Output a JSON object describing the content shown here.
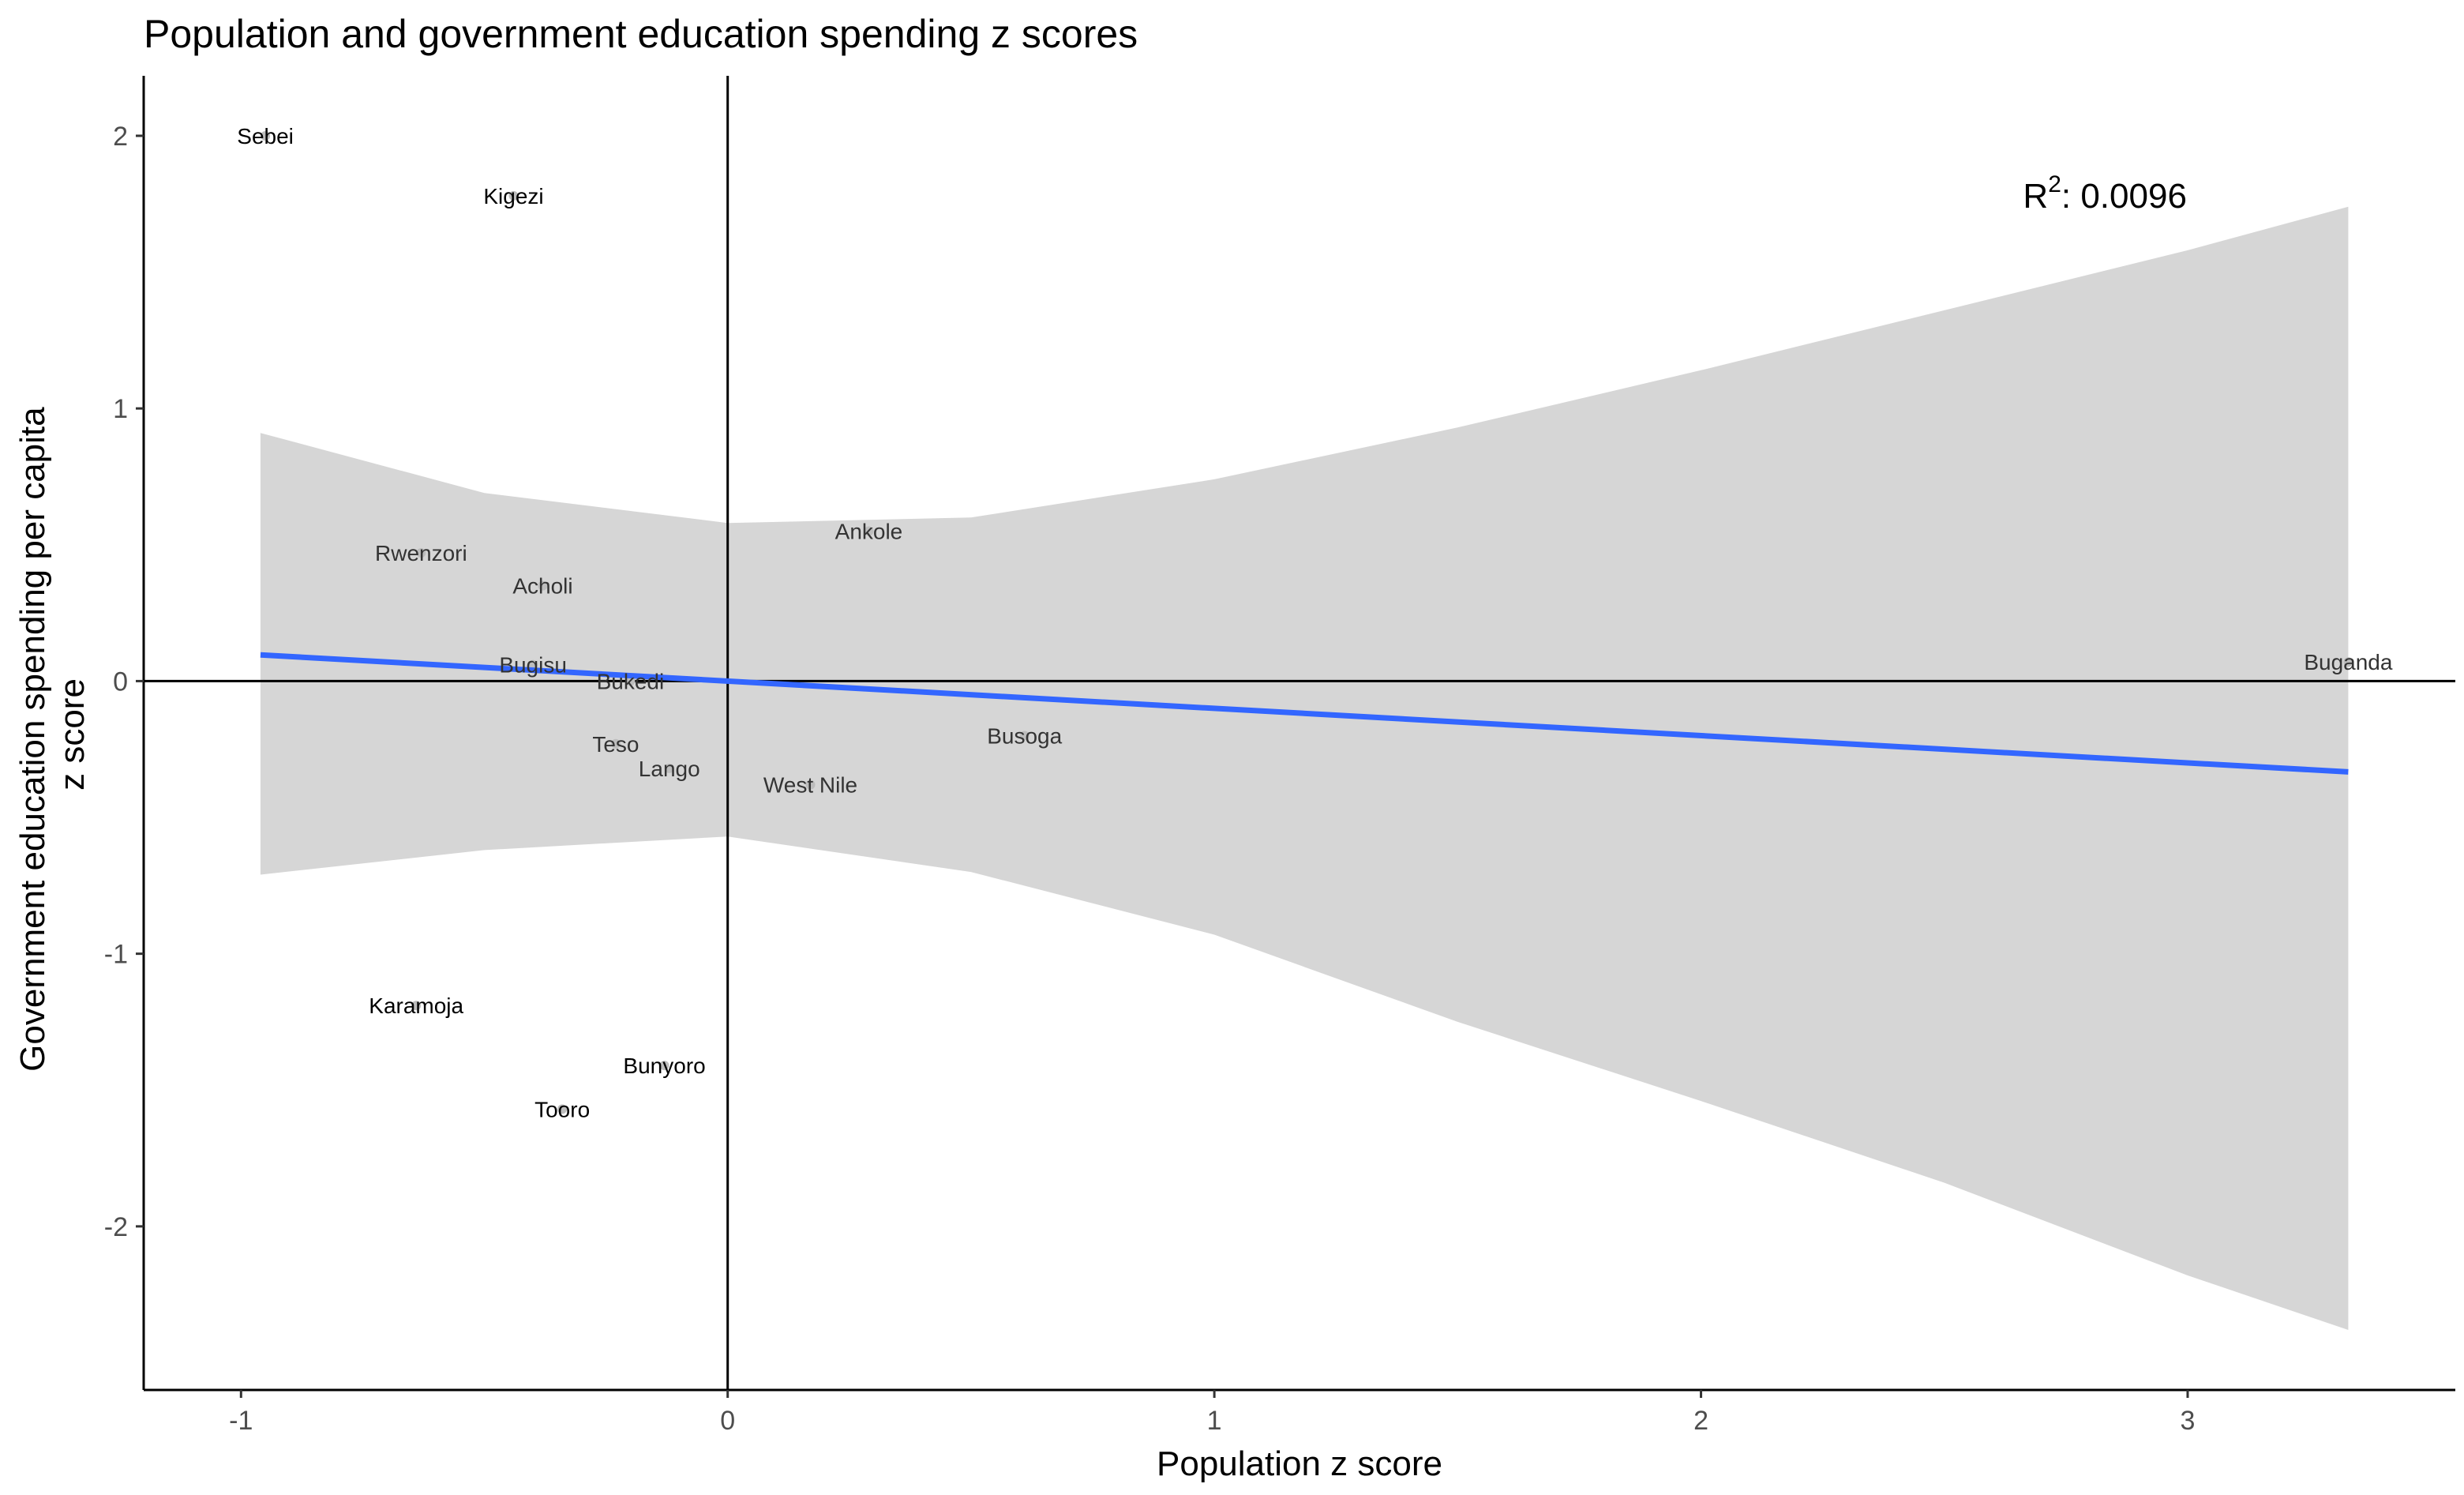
{
  "chart_data": {
    "type": "scatter",
    "title": "Population and government education spending z scores",
    "xlabel": "Population z score",
    "ylabel_lines": [
      "Government education spending per capita",
      "z score"
    ],
    "xlim": [
      -1.2,
      3.55
    ],
    "ylim": [
      -2.6,
      2.22
    ],
    "xticks": [
      -1,
      0,
      1,
      2,
      3
    ],
    "xtick_labels": [
      "-1",
      "0",
      "1",
      "2",
      "3"
    ],
    "yticks": [
      -2,
      -1,
      0,
      1,
      2
    ],
    "ytick_labels": [
      "-2",
      "-1",
      "0",
      "1",
      "2"
    ],
    "grid": false,
    "points": [
      {
        "label": "Sebei",
        "x": -0.95,
        "y": 2.0,
        "label_color": "#000000"
      },
      {
        "label": "Kigezi",
        "x": -0.44,
        "y": 1.78,
        "label_color": "#000000"
      },
      {
        "label": "Rwenzori",
        "x": -0.63,
        "y": 0.47,
        "label_color": "#333333"
      },
      {
        "label": "Acholi",
        "x": -0.38,
        "y": 0.35,
        "label_color": "#333333"
      },
      {
        "label": "Bugisu",
        "x": -0.4,
        "y": 0.06,
        "label_color": "#333333"
      },
      {
        "label": "Bukedi",
        "x": -0.2,
        "y": 0.0,
        "label_color": "#333333"
      },
      {
        "label": "Teso",
        "x": -0.23,
        "y": -0.23,
        "label_color": "#333333"
      },
      {
        "label": "Lango",
        "x": -0.12,
        "y": -0.32,
        "label_color": "#333333"
      },
      {
        "label": "West Nile",
        "x": 0.17,
        "y": -0.38,
        "label_color": "#333333"
      },
      {
        "label": "Ankole",
        "x": 0.29,
        "y": 0.55,
        "label_color": "#333333"
      },
      {
        "label": "Busoga",
        "x": 0.61,
        "y": -0.2,
        "label_color": "#333333"
      },
      {
        "label": "Buganda",
        "x": 3.33,
        "y": 0.07,
        "label_color": "#333333"
      },
      {
        "label": "Karamoja",
        "x": -0.64,
        "y": -1.19,
        "label_color": "#000000"
      },
      {
        "label": "Bunyoro",
        "x": -0.13,
        "y": -1.41,
        "label_color": "#000000"
      },
      {
        "label": "Tooro",
        "x": -0.34,
        "y": -1.57,
        "label_color": "#000000"
      }
    ],
    "regression": {
      "x_range": [
        -0.96,
        3.33
      ],
      "intercept": 0.0,
      "slope": -0.1,
      "color": "#3366FF"
    },
    "confidence_band": {
      "x": [
        -0.96,
        -0.5,
        0.0,
        0.5,
        1.0,
        1.5,
        2.0,
        2.5,
        3.0,
        3.33
      ],
      "upper": [
        0.91,
        0.69,
        0.58,
        0.6,
        0.74,
        0.93,
        1.14,
        1.36,
        1.58,
        1.74
      ],
      "lower": [
        -0.71,
        -0.62,
        -0.57,
        -0.7,
        -0.93,
        -1.25,
        -1.54,
        -1.84,
        -2.18,
        -2.38
      ],
      "color": "#d6d6d6"
    },
    "reference_lines": {
      "x": 0,
      "y": 0
    },
    "annotation": {
      "base": "R",
      "sup": "2",
      "text": ": 0.0096",
      "x": 2.83,
      "y": 1.78
    }
  }
}
